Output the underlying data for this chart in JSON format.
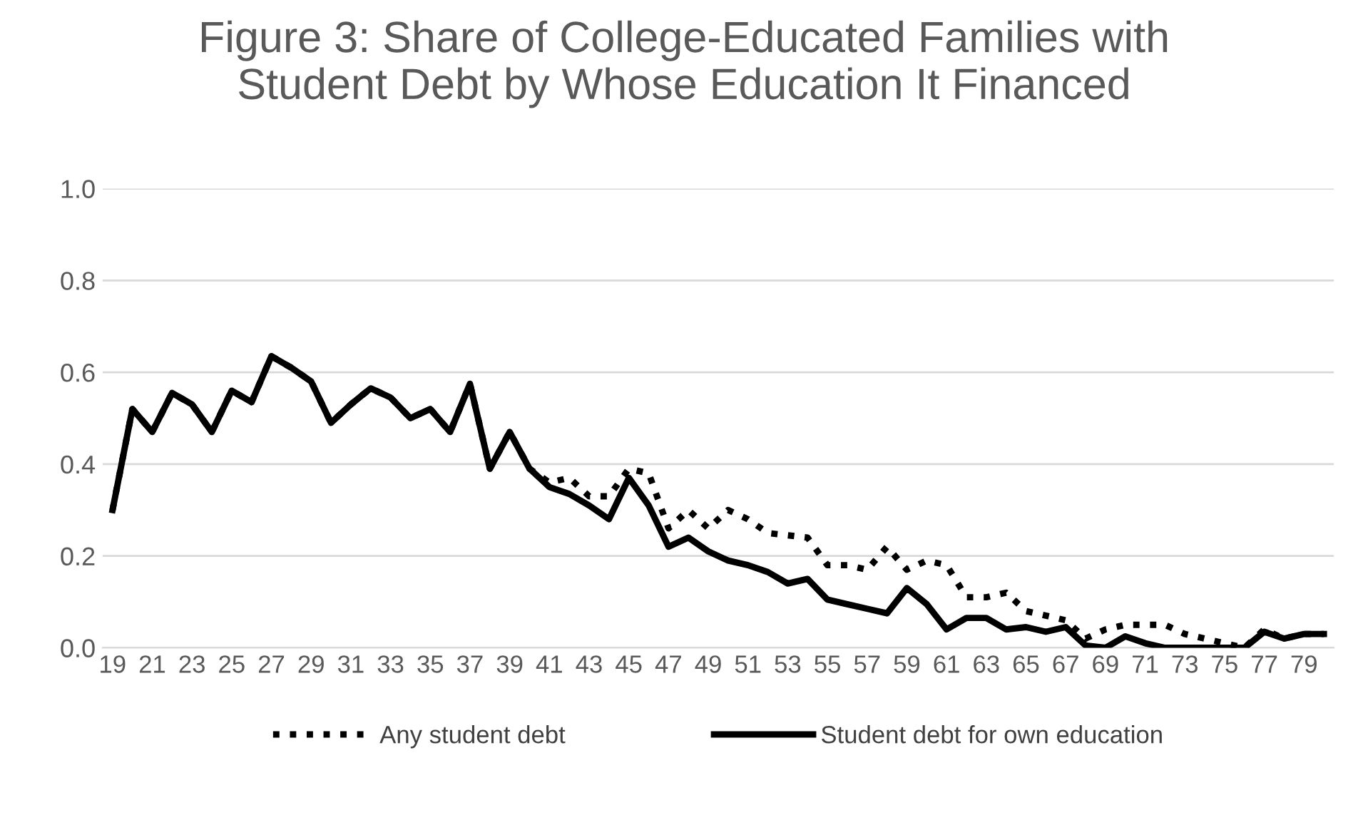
{
  "chart_data": {
    "type": "line",
    "title": "Figure 3: Share of College-Educated Families with\nStudent Debt by Whose Education It Financed",
    "categories": [
      "19",
      null,
      "21",
      null,
      "23",
      null,
      "25",
      null,
      "27",
      null,
      "29",
      null,
      "31",
      null,
      "33",
      null,
      "35",
      null,
      "37",
      null,
      "39",
      null,
      "41",
      null,
      "43",
      null,
      "45",
      null,
      "47",
      null,
      "49",
      null,
      "51",
      null,
      "53",
      null,
      "55",
      null,
      "57",
      null,
      "59",
      null,
      "61",
      null,
      "63",
      null,
      "65",
      null,
      "67",
      null,
      "69",
      null,
      "71",
      null,
      "73",
      null,
      "75",
      null,
      "77",
      null,
      "79",
      null
    ],
    "series": [
      {
        "name": "Any student debt",
        "color": "#000000",
        "line_style": "dotted",
        "values": [
          0.3,
          0.52,
          0.47,
          0.555,
          0.53,
          0.47,
          0.56,
          0.535,
          0.635,
          0.61,
          0.58,
          0.49,
          0.53,
          0.565,
          0.545,
          0.5,
          0.52,
          0.47,
          0.575,
          0.39,
          0.47,
          0.39,
          0.36,
          0.37,
          0.33,
          0.33,
          0.39,
          0.38,
          0.26,
          0.3,
          0.26,
          0.3,
          0.28,
          0.25,
          0.245,
          0.24,
          0.18,
          0.18,
          0.17,
          0.22,
          0.17,
          0.19,
          0.18,
          0.11,
          0.11,
          0.12,
          0.08,
          0.07,
          0.06,
          0.02,
          0.04,
          0.05,
          0.05,
          0.05,
          0.03,
          0.02,
          0.01,
          0.0,
          0.04,
          0.02,
          0.03,
          0.03
        ]
      },
      {
        "name": "Student debt for own education",
        "color": "#000000",
        "line_style": "solid",
        "values": [
          0.3,
          0.52,
          0.47,
          0.555,
          0.53,
          0.47,
          0.56,
          0.535,
          0.635,
          0.61,
          0.58,
          0.49,
          0.53,
          0.565,
          0.545,
          0.5,
          0.52,
          0.47,
          0.575,
          0.39,
          0.47,
          0.39,
          0.35,
          0.335,
          0.31,
          0.28,
          0.37,
          0.31,
          0.22,
          0.24,
          0.21,
          0.19,
          0.18,
          0.165,
          0.14,
          0.15,
          0.105,
          0.095,
          0.085,
          0.075,
          0.13,
          0.095,
          0.04,
          0.065,
          0.065,
          0.04,
          0.045,
          0.035,
          0.045,
          0.005,
          0.0,
          0.025,
          0.01,
          0.0,
          0.0,
          0.0,
          0.0,
          0.0,
          0.035,
          0.02,
          0.03,
          0.03
        ]
      }
    ],
    "ylim": [
      0,
      1.0
    ],
    "yticks": [
      {
        "value": 0,
        "label": "0.0"
      },
      {
        "value": 0.2,
        "label": "0.2"
      },
      {
        "value": 0.4,
        "label": "0.4"
      },
      {
        "value": 0.6,
        "label": "0.6"
      },
      {
        "value": 0.8,
        "label": "0.8"
      },
      {
        "value": 1.0,
        "label": "1.0"
      }
    ],
    "grid": "y",
    "legend": "bottom",
    "marker": "none"
  }
}
